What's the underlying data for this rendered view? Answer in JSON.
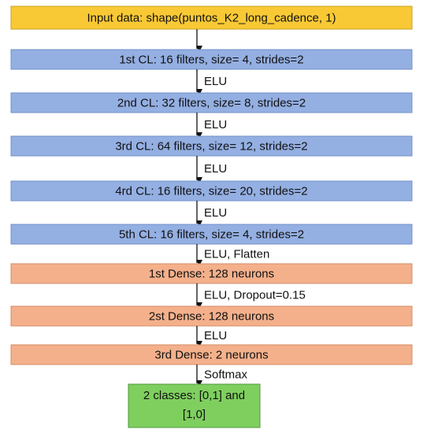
{
  "nodes": [
    {
      "label": "Input data: shape(puntos_K2_long_cadence, 1)"
    },
    {
      "label": "1st CL: 16 filters, size= 4, strides=2"
    },
    {
      "label": "2nd CL: 32 filters, size= 8, strides=2"
    },
    {
      "label": "3rd CL: 64 filters, size= 12, strides=2"
    },
    {
      "label": "4rd CL: 16 filters, size= 20, strides=2"
    },
    {
      "label": "5th CL: 16 filters, size= 4, strides=2"
    },
    {
      "label": "1st Dense: 128 neurons"
    },
    {
      "label": "2st Dense: 128 neurons"
    },
    {
      "label": "3rd Dense: 2 neurons"
    },
    {
      "label": [
        "2 classes: [0,1] and",
        "[1,0]"
      ]
    }
  ],
  "edges": [
    "ELU",
    "ELU",
    "ELU",
    "ELU",
    "ELU, Flatten",
    "ELU, Dropout=0.15",
    "ELU",
    "Softmax"
  ]
}
